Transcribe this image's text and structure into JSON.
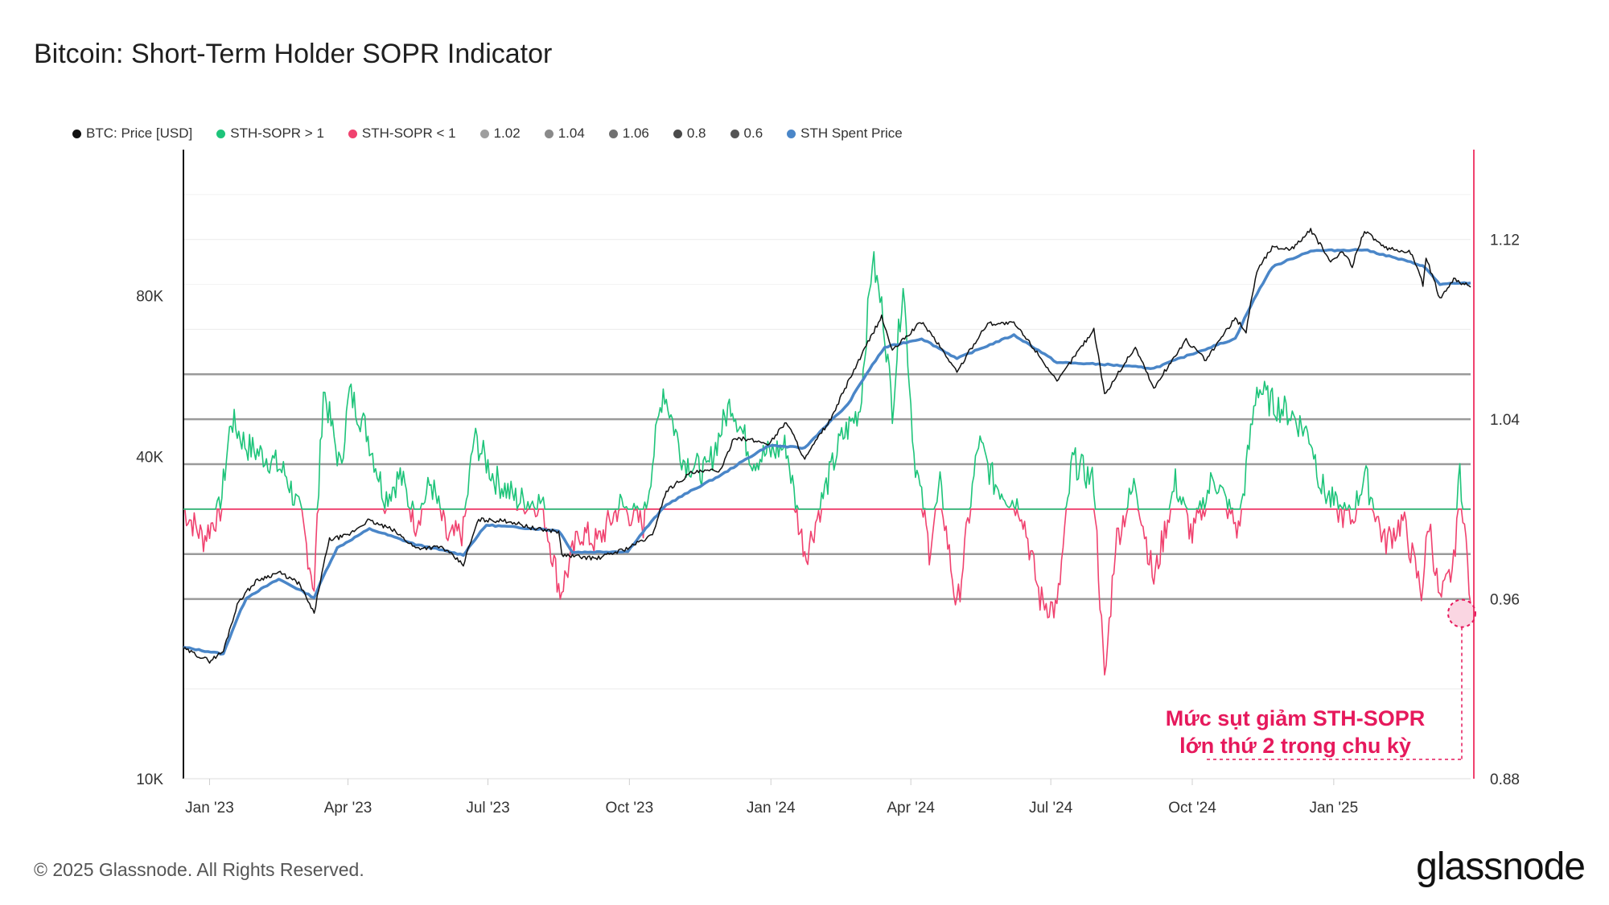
{
  "chart_data": {
    "type": "line",
    "title": "Bitcoin: Short-Term Holder SOPR Indicator",
    "legend": [
      {
        "label": "BTC: Price [USD]",
        "color": "#111111"
      },
      {
        "label": "STH-SOPR > 1",
        "color": "#1ec47a"
      },
      {
        "label": "STH-SOPR < 1",
        "color": "#f0426f"
      },
      {
        "label": "1.02",
        "color": "#9e9e9e"
      },
      {
        "label": "1.04",
        "color": "#8a8a8a"
      },
      {
        "label": "1.06",
        "color": "#707070"
      },
      {
        "label": "0.8",
        "color": "#4a4a4a"
      },
      {
        "label": "0.6",
        "color": "#555555"
      },
      {
        "label": "STH Spent Price",
        "color": "#4a86c8"
      }
    ],
    "legend_placement": "top-left",
    "x_ticks": [
      "Jan '23",
      "Apr '23",
      "Jul '23",
      "Oct '23",
      "Jan '24",
      "Apr '24",
      "Jul '24",
      "Oct '24",
      "Jan '25"
    ],
    "x_range": [
      "2022-12-15",
      "2025-03-31"
    ],
    "left_axis": {
      "scale": "log",
      "ticks": [
        "10K",
        "40K",
        "80K"
      ],
      "tick_values": [
        10000,
        40000,
        80000
      ],
      "range": [
        10000,
        150000
      ]
    },
    "right_axis": {
      "scale": "linear",
      "ticks": [
        "0.88",
        "0.96",
        "1.04",
        "1.12"
      ],
      "tick_values": [
        0.88,
        0.96,
        1.04,
        1.12
      ],
      "range": [
        0.88,
        1.16
      ]
    },
    "reference_lines": [
      0.96,
      0.98,
      1.0,
      1.02,
      1.04,
      1.06
    ],
    "series": [
      {
        "name": "BTC: Price [USD]",
        "axis": "left",
        "points": [
          [
            "2022-12-15",
            17500
          ],
          [
            "2023-01-01",
            16600
          ],
          [
            "2023-01-10",
            17300
          ],
          [
            "2023-01-20",
            21500
          ],
          [
            "2023-02-01",
            23500
          ],
          [
            "2023-02-15",
            24300
          ],
          [
            "2023-02-28",
            23200
          ],
          [
            "2023-03-10",
            20300
          ],
          [
            "2023-03-20",
            28000
          ],
          [
            "2023-04-01",
            28500
          ],
          [
            "2023-04-14",
            30400
          ],
          [
            "2023-04-30",
            29200
          ],
          [
            "2023-05-15",
            27000
          ],
          [
            "2023-06-01",
            27100
          ],
          [
            "2023-06-15",
            25100
          ],
          [
            "2023-06-25",
            30500
          ],
          [
            "2023-07-15",
            30300
          ],
          [
            "2023-08-01",
            29300
          ],
          [
            "2023-08-16",
            29000
          ],
          [
            "2023-08-18",
            26200
          ],
          [
            "2023-09-10",
            25800
          ],
          [
            "2023-09-30",
            27000
          ],
          [
            "2023-10-16",
            28500
          ],
          [
            "2023-10-25",
            34500
          ],
          [
            "2023-11-10",
            37300
          ],
          [
            "2023-11-30",
            37800
          ],
          [
            "2023-12-08",
            43500
          ],
          [
            "2023-12-31",
            42300
          ],
          [
            "2024-01-11",
            46500
          ],
          [
            "2024-01-23",
            39500
          ],
          [
            "2024-02-10",
            47500
          ],
          [
            "2024-02-28",
            61000
          ],
          [
            "2024-03-13",
            73000
          ],
          [
            "2024-03-20",
            63000
          ],
          [
            "2024-04-08",
            71500
          ],
          [
            "2024-05-01",
            57500
          ],
          [
            "2024-05-21",
            71000
          ],
          [
            "2024-06-07",
            71000
          ],
          [
            "2024-06-25",
            61000
          ],
          [
            "2024-07-05",
            55000
          ],
          [
            "2024-07-29",
            69000
          ],
          [
            "2024-08-05",
            52000
          ],
          [
            "2024-08-25",
            64000
          ],
          [
            "2024-09-06",
            53500
          ],
          [
            "2024-09-27",
            66000
          ],
          [
            "2024-10-10",
            60500
          ],
          [
            "2024-10-29",
            72500
          ],
          [
            "2024-11-05",
            68500
          ],
          [
            "2024-11-12",
            89000
          ],
          [
            "2024-11-22",
            98500
          ],
          [
            "2024-12-05",
            98000
          ],
          [
            "2024-12-17",
            106000
          ],
          [
            "2024-12-30",
            92500
          ],
          [
            "2025-01-07",
            96500
          ],
          [
            "2025-01-13",
            91000
          ],
          [
            "2025-01-21",
            106000
          ],
          [
            "2025-02-03",
            98000
          ],
          [
            "2025-02-20",
            96500
          ],
          [
            "2025-02-28",
            84000
          ],
          [
            "2025-03-02",
            94000
          ],
          [
            "2025-03-11",
            79000
          ],
          [
            "2025-03-20",
            86000
          ],
          [
            "2025-03-31",
            83000
          ]
        ]
      },
      {
        "name": "STH Spent Price",
        "axis": "left",
        "points": [
          [
            "2022-12-15",
            17600
          ],
          [
            "2023-01-10",
            17100
          ],
          [
            "2023-01-25",
            21800
          ],
          [
            "2023-02-15",
            23600
          ],
          [
            "2023-03-10",
            21800
          ],
          [
            "2023-03-25",
            27000
          ],
          [
            "2023-04-15",
            29300
          ],
          [
            "2023-05-15",
            27400
          ],
          [
            "2023-06-15",
            26200
          ],
          [
            "2023-06-30",
            29800
          ],
          [
            "2023-08-16",
            29100
          ],
          [
            "2023-08-25",
            26500
          ],
          [
            "2023-09-30",
            26600
          ],
          [
            "2023-10-25",
            32500
          ],
          [
            "2023-11-30",
            37000
          ],
          [
            "2023-12-31",
            42000
          ],
          [
            "2024-01-23",
            41500
          ],
          [
            "2024-02-20",
            50000
          ],
          [
            "2024-03-15",
            64000
          ],
          [
            "2024-04-08",
            66500
          ],
          [
            "2024-05-01",
            61000
          ],
          [
            "2024-06-07",
            67500
          ],
          [
            "2024-07-05",
            60000
          ],
          [
            "2024-08-05",
            59500
          ],
          [
            "2024-09-06",
            58500
          ],
          [
            "2024-10-29",
            66500
          ],
          [
            "2024-11-22",
            90500
          ],
          [
            "2024-12-17",
            97000
          ],
          [
            "2025-01-21",
            97500
          ],
          [
            "2025-02-28",
            91000
          ],
          [
            "2025-03-11",
            84000
          ],
          [
            "2025-03-31",
            84500
          ]
        ]
      },
      {
        "name": "STH-SOPR",
        "axis": "right",
        "points": [
          [
            "2022-12-15",
            1.0
          ],
          [
            "2022-12-28",
            0.987
          ],
          [
            "2023-01-08",
            1.0
          ],
          [
            "2023-01-15",
            1.04
          ],
          [
            "2023-01-25",
            1.028
          ],
          [
            "2023-02-10",
            1.022
          ],
          [
            "2023-02-20",
            1.015
          ],
          [
            "2023-03-02",
            0.995
          ],
          [
            "2023-03-10",
            0.965
          ],
          [
            "2023-03-16",
            1.054
          ],
          [
            "2023-03-27",
            1.018
          ],
          [
            "2023-04-02",
            1.052
          ],
          [
            "2023-04-13",
            1.035
          ],
          [
            "2023-04-25",
            1.005
          ],
          [
            "2023-05-05",
            1.015
          ],
          [
            "2023-05-15",
            0.994
          ],
          [
            "2023-05-25",
            1.012
          ],
          [
            "2023-06-05",
            0.986
          ],
          [
            "2023-06-15",
            0.99
          ],
          [
            "2023-06-22",
            1.032
          ],
          [
            "2023-07-05",
            1.014
          ],
          [
            "2023-07-20",
            1.004
          ],
          [
            "2023-08-05",
            1.003
          ],
          [
            "2023-08-17",
            0.963
          ],
          [
            "2023-08-30",
            0.99
          ],
          [
            "2023-09-10",
            0.985
          ],
          [
            "2023-09-25",
            1.002
          ],
          [
            "2023-10-10",
            0.993
          ],
          [
            "2023-10-23",
            1.054
          ],
          [
            "2023-11-05",
            1.022
          ],
          [
            "2023-11-20",
            1.016
          ],
          [
            "2023-12-06",
            1.048
          ],
          [
            "2023-12-20",
            1.022
          ],
          [
            "2024-01-11",
            1.028
          ],
          [
            "2024-01-20",
            0.99
          ],
          [
            "2024-01-24",
            0.98
          ],
          [
            "2024-02-05",
            1.008
          ],
          [
            "2024-02-15",
            1.03
          ],
          [
            "2024-02-28",
            1.045
          ],
          [
            "2024-03-07",
            1.112
          ],
          [
            "2024-03-14",
            1.086
          ],
          [
            "2024-03-20",
            1.045
          ],
          [
            "2024-03-27",
            1.102
          ],
          [
            "2024-04-03",
            1.025
          ],
          [
            "2024-04-13",
            0.982
          ],
          [
            "2024-04-20",
            1.01
          ],
          [
            "2024-05-01",
            0.955
          ],
          [
            "2024-05-15",
            1.03
          ],
          [
            "2024-05-25",
            1.012
          ],
          [
            "2024-06-12",
            1.0
          ],
          [
            "2024-06-24",
            0.96
          ],
          [
            "2024-07-05",
            0.955
          ],
          [
            "2024-07-15",
            1.022
          ],
          [
            "2024-07-29",
            1.012
          ],
          [
            "2024-08-05",
            0.922
          ],
          [
            "2024-08-12",
            0.985
          ],
          [
            "2024-08-25",
            1.012
          ],
          [
            "2024-09-06",
            0.968
          ],
          [
            "2024-09-20",
            1.012
          ],
          [
            "2024-10-01",
            0.988
          ],
          [
            "2024-10-15",
            1.015
          ],
          [
            "2024-10-31",
            0.99
          ],
          [
            "2024-11-12",
            1.055
          ],
          [
            "2024-11-20",
            1.048
          ],
          [
            "2024-12-05",
            1.042
          ],
          [
            "2024-12-17",
            1.032
          ],
          [
            "2024-12-24",
            1.01
          ],
          [
            "2025-01-03",
            1.0
          ],
          [
            "2025-01-13",
            0.995
          ],
          [
            "2025-01-21",
            1.016
          ],
          [
            "2025-02-03",
            0.985
          ],
          [
            "2025-02-15",
            0.995
          ],
          [
            "2025-02-27",
            0.963
          ],
          [
            "2025-03-04",
            0.995
          ],
          [
            "2025-03-11",
            0.958
          ],
          [
            "2025-03-20",
            0.975
          ],
          [
            "2025-03-24",
            1.018
          ],
          [
            "2025-03-31",
            0.958
          ]
        ]
      }
    ],
    "annotation": {
      "lines": [
        "Mức sụt giảm STH-SOPR",
        "lớn thứ 2 trong chu kỳ"
      ],
      "date": "2025-03-31",
      "value": 0.955,
      "color": "#e6195c"
    }
  },
  "footer": {
    "copyright": "© 2025 Glassnode. All Rights Reserved.",
    "brand": "glassnode"
  }
}
